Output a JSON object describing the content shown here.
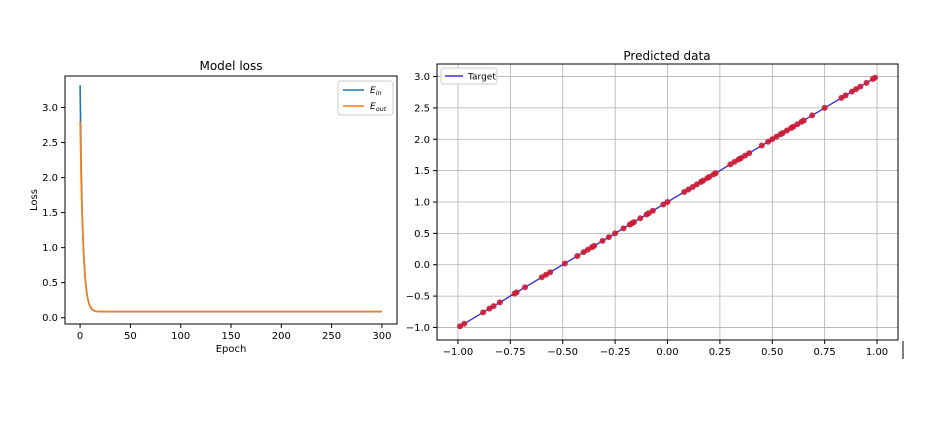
{
  "chart_data": [
    {
      "type": "line",
      "title": "Model loss",
      "xlabel": "Epoch",
      "ylabel": "Loss",
      "xlim": [
        -15,
        315
      ],
      "ylim": [
        -0.09,
        3.45
      ],
      "xticks": [
        0,
        50,
        100,
        150,
        200,
        250,
        300
      ],
      "yticks": [
        0.0,
        0.5,
        1.0,
        1.5,
        2.0,
        2.5,
        3.0
      ],
      "legend": "top-right",
      "grid": false,
      "series": [
        {
          "name": "E_in",
          "label_main": "E",
          "label_sub": "in",
          "color": "#1f77b4",
          "x": [
            0,
            1,
            2,
            3,
            4,
            5,
            6,
            7,
            8,
            9,
            10,
            11,
            12,
            13,
            14,
            15,
            16,
            17,
            18,
            19,
            20,
            25,
            30,
            40,
            60,
            100,
            150,
            200,
            250,
            300
          ],
          "y": [
            3.32,
            2.2,
            1.55,
            1.1,
            0.8,
            0.58,
            0.43,
            0.32,
            0.25,
            0.19,
            0.16,
            0.13,
            0.115,
            0.105,
            0.098,
            0.094,
            0.091,
            0.089,
            0.088,
            0.087,
            0.087,
            0.086,
            0.086,
            0.086,
            0.086,
            0.086,
            0.086,
            0.086,
            0.086,
            0.086
          ]
        },
        {
          "name": "E_out",
          "label_main": "E",
          "label_sub": "out",
          "color": "#ff7f0e",
          "x": [
            0,
            1,
            2,
            3,
            4,
            5,
            6,
            7,
            8,
            9,
            10,
            11,
            12,
            13,
            14,
            15,
            16,
            17,
            18,
            19,
            20,
            25,
            30,
            40,
            60,
            100,
            150,
            200,
            250,
            300
          ],
          "y": [
            2.8,
            2.0,
            1.45,
            1.05,
            0.76,
            0.56,
            0.42,
            0.32,
            0.25,
            0.2,
            0.16,
            0.14,
            0.12,
            0.11,
            0.1,
            0.095,
            0.092,
            0.09,
            0.089,
            0.088,
            0.088,
            0.087,
            0.087,
            0.087,
            0.087,
            0.087,
            0.087,
            0.087,
            0.087,
            0.087
          ]
        }
      ]
    },
    {
      "type": "scatter",
      "title": "Predicted data",
      "xlabel": "",
      "ylabel": "",
      "xlim": [
        -1.1,
        1.1
      ],
      "ylim": [
        -1.2,
        3.2
      ],
      "xticks": [
        -1.0,
        -0.75,
        -0.5,
        -0.25,
        0.0,
        0.25,
        0.5,
        0.75,
        1.0
      ],
      "xtick_labels": [
        "−1.00",
        "−0.75",
        "−0.50",
        "−0.25",
        "0.00",
        "0.25",
        "0.50",
        "0.75",
        "1.00"
      ],
      "yticks": [
        -1.0,
        -0.5,
        0.0,
        0.5,
        1.0,
        1.5,
        2.0,
        2.5,
        3.0
      ],
      "ytick_labels": [
        "−1.0",
        "−0.5",
        "0.0",
        "0.5",
        "1.0",
        "1.5",
        "2.0",
        "2.5",
        "3.0"
      ],
      "legend": "top-left",
      "grid": true,
      "line": {
        "name": "Target",
        "color": "#3b2fd6",
        "x": [
          -1.0,
          1.0
        ],
        "y": [
          -1.0,
          3.0
        ]
      },
      "points_color": "#cc1a33",
      "points_x": [
        -0.99,
        -0.97,
        -0.88,
        -0.85,
        -0.83,
        -0.8,
        -0.73,
        -0.72,
        -0.68,
        -0.6,
        -0.58,
        -0.56,
        -0.49,
        -0.43,
        -0.4,
        -0.38,
        -0.36,
        -0.35,
        -0.31,
        -0.28,
        -0.25,
        -0.21,
        -0.18,
        -0.17,
        -0.16,
        -0.13,
        -0.1,
        -0.09,
        -0.07,
        -0.02,
        0.0,
        0.08,
        0.1,
        0.12,
        0.14,
        0.16,
        0.17,
        0.19,
        0.2,
        0.22,
        0.23,
        0.3,
        0.32,
        0.34,
        0.35,
        0.37,
        0.39,
        0.45,
        0.48,
        0.5,
        0.52,
        0.54,
        0.55,
        0.57,
        0.59,
        0.6,
        0.62,
        0.64,
        0.65,
        0.69,
        0.75,
        0.83,
        0.85,
        0.88,
        0.9,
        0.92,
        0.95,
        0.98,
        0.99
      ]
    }
  ]
}
